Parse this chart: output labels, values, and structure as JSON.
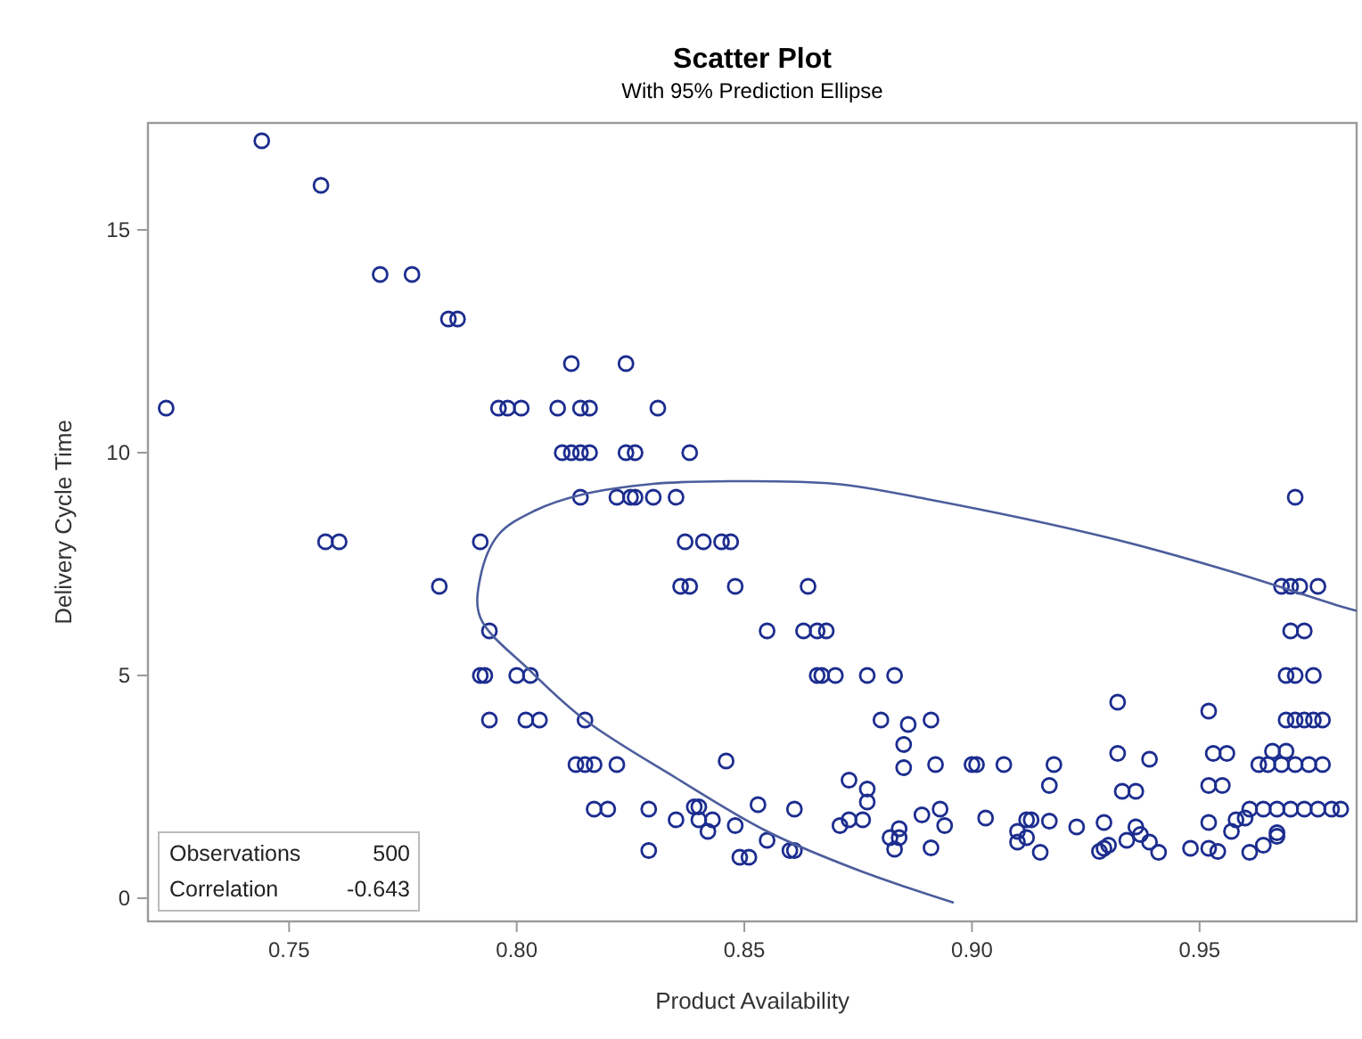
{
  "chart_data": {
    "type": "scatter",
    "title": "Scatter Plot",
    "subtitle": "With 95% Prediction Ellipse",
    "xlabel": "Product Availability",
    "ylabel": "Delivery Cycle Time",
    "xlim": [
      0.719,
      0.9845
    ],
    "xticks": [
      {
        "value": 0.75,
        "label": "0.75"
      },
      {
        "value": 0.8,
        "label": "0.80"
      },
      {
        "value": 0.85,
        "label": "0.85"
      },
      {
        "value": 0.9,
        "label": "0.90"
      },
      {
        "value": 0.95,
        "label": "0.95"
      }
    ],
    "ylim": [
      -0.52,
      17.4
    ],
    "yticks": [
      0,
      5,
      10,
      15
    ],
    "grid": false,
    "annotations": [
      "Observations",
      "500",
      "Correlation",
      "-0.643"
    ],
    "series": [
      {
        "marker": "circle",
        "color": "#1c2d8f",
        "x": [
          0.723,
          0.744,
          0.757,
          0.77,
          0.777,
          0.785,
          0.787,
          0.812,
          0.824,
          0.796,
          0.798,
          0.801,
          0.809,
          0.814,
          0.816,
          0.831,
          0.81,
          0.812,
          0.814,
          0.816,
          0.824,
          0.826,
          0.838,
          0.814,
          0.822,
          0.825,
          0.826,
          0.83,
          0.835,
          0.758,
          0.761,
          0.792,
          0.837,
          0.841,
          0.845,
          0.847,
          0.783,
          0.836,
          0.838,
          0.848,
          0.864,
          0.794,
          0.855,
          0.863,
          0.866,
          0.868,
          0.792,
          0.793,
          0.8,
          0.803,
          0.866,
          0.867,
          0.87,
          0.877,
          0.883,
          0.794,
          0.802,
          0.805,
          0.815,
          0.88,
          0.886,
          0.891,
          0.885,
          0.813,
          0.815,
          0.817,
          0.822,
          0.846,
          0.885,
          0.892,
          0.873,
          0.877,
          0.877,
          0.817,
          0.82,
          0.829,
          0.839,
          0.84,
          0.853,
          0.861,
          0.893,
          0.835,
          0.84,
          0.843,
          0.842,
          0.848,
          0.871,
          0.873,
          0.876,
          0.889,
          0.894,
          0.855,
          0.882,
          0.884,
          0.884,
          0.829,
          0.849,
          0.851,
          0.86,
          0.861,
          0.883,
          0.891,
          0.971,
          0.968,
          0.97,
          0.972,
          0.976,
          0.97,
          0.973,
          0.969,
          0.971,
          0.975,
          0.952,
          0.932,
          0.969,
          0.971,
          0.973,
          0.975,
          0.977,
          0.9,
          0.901,
          0.907,
          0.918,
          0.963,
          0.965,
          0.968,
          0.971,
          0.974,
          0.977,
          0.932,
          0.939,
          0.953,
          0.956,
          0.966,
          0.969,
          0.917,
          0.933,
          0.936,
          0.952,
          0.955,
          0.903,
          0.964,
          0.967,
          0.97,
          0.973,
          0.976,
          0.979,
          0.981,
          0.912,
          0.913,
          0.917,
          0.923,
          0.929,
          0.936,
          0.952,
          0.958,
          0.96,
          0.961,
          0.91,
          0.912,
          0.91,
          0.934,
          0.937,
          0.939,
          0.957,
          0.967,
          0.915,
          0.928,
          0.929,
          0.93,
          0.941,
          0.948,
          0.952,
          0.954,
          0.961,
          0.964,
          0.967
        ],
        "values": [
          11,
          17,
          16,
          14,
          14,
          13,
          13,
          12,
          12,
          11,
          11,
          11,
          11,
          11,
          11,
          11,
          10,
          10,
          10,
          10,
          10,
          10,
          10,
          9,
          9,
          9,
          9,
          9,
          9,
          8,
          8,
          8,
          8,
          8,
          8,
          8,
          7,
          7,
          7,
          7,
          7,
          6,
          6,
          6,
          6,
          6,
          5,
          5,
          5,
          5,
          5,
          5,
          5,
          5,
          5,
          4,
          4,
          4,
          4,
          4,
          3.9,
          4,
          3.45,
          3,
          3,
          3,
          3,
          3.08,
          2.93,
          3,
          2.65,
          2.45,
          2.16,
          2,
          2,
          2,
          2.05,
          2.05,
          2.1,
          2,
          2,
          1.76,
          1.76,
          1.76,
          1.5,
          1.63,
          1.63,
          1.76,
          1.76,
          1.87,
          1.63,
          1.3,
          1.36,
          1.36,
          1.56,
          1.07,
          0.92,
          0.92,
          1.07,
          1.07,
          1.1,
          1.13,
          9,
          7,
          7,
          7,
          7,
          6,
          6,
          5,
          5,
          5,
          4.2,
          4.4,
          4,
          4,
          4,
          4,
          4,
          3,
          3,
          3,
          3,
          3,
          3,
          3,
          3,
          3,
          3,
          3.25,
          3.12,
          3.25,
          3.25,
          3.3,
          3.3,
          2.53,
          2.4,
          2.4,
          2.53,
          2.53,
          1.8,
          2,
          2,
          2,
          2,
          2,
          2,
          2,
          1.76,
          1.76,
          1.73,
          1.6,
          1.7,
          1.6,
          1.7,
          1.76,
          1.8,
          2,
          1.5,
          1.36,
          1.26,
          1.3,
          1.43,
          1.26,
          1.5,
          1.47,
          1.03,
          1.05,
          1.12,
          1.19,
          1.03,
          1.12,
          1.12,
          1.05,
          1.03,
          1.19,
          1.39
        ]
      },
      {
        "type": "line",
        "marker": "none",
        "color": "#4c5d9c",
        "x": [
          0.896,
          0.875,
          0.855,
          0.835,
          0.815,
          0.803,
          0.792,
          0.792,
          0.796,
          0.804,
          0.814,
          0.83,
          0.847,
          0.87,
          0.89,
          0.93,
          0.956,
          0.982,
          0.9845
        ],
        "values": [
          -0.1,
          0.63,
          1.5,
          2.7,
          4,
          5.1,
          6.3,
          7.2,
          8.16,
          8.7,
          9.05,
          9.3,
          9.36,
          9.3,
          8.96,
          8.09,
          7.36,
          6.52,
          6.45
        ]
      }
    ]
  }
}
